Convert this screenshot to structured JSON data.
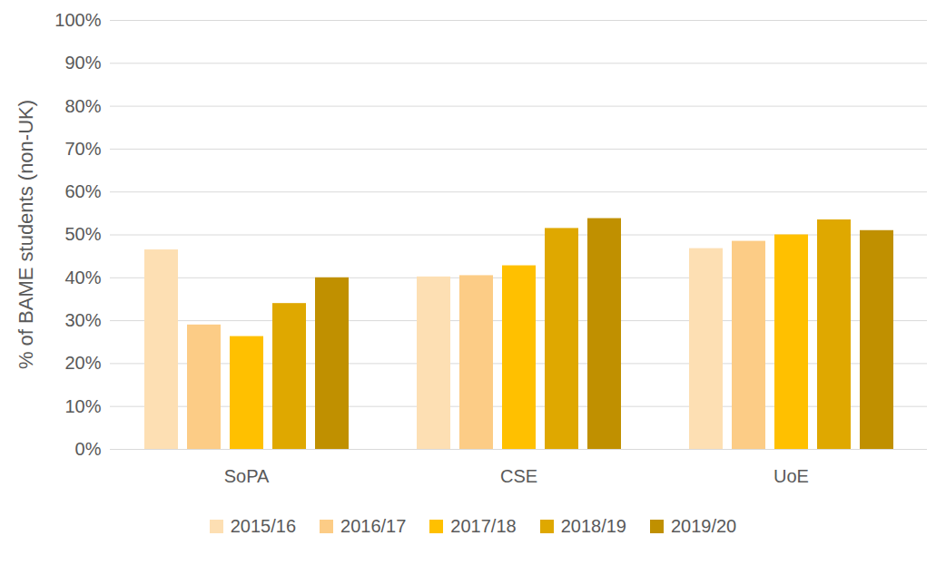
{
  "chart_data": {
    "type": "bar",
    "y_label": "% of BAME students (non-UK)",
    "categories": [
      "SoPA",
      "CSE",
      "UoE"
    ],
    "series": [
      {
        "name": "2015/16",
        "color": "#FDDFB3",
        "values": [
          46.5,
          40.2,
          46.8
        ]
      },
      {
        "name": "2016/17",
        "color": "#FCCC86",
        "values": [
          29,
          40.5,
          48.5
        ]
      },
      {
        "name": "2017/18",
        "color": "#FFC000",
        "values": [
          26.3,
          42.8,
          50
        ]
      },
      {
        "name": "2018/19",
        "color": "#DFA800",
        "values": [
          34,
          51.5,
          53.5
        ]
      },
      {
        "name": "2019/20",
        "color": "#C09000",
        "values": [
          40,
          53.8,
          51
        ]
      }
    ],
    "ylim": [
      0,
      100
    ],
    "yticks": [
      {
        "value": 0,
        "label": "0%"
      },
      {
        "value": 10,
        "label": "10%"
      },
      {
        "value": 20,
        "label": "20%"
      },
      {
        "value": 30,
        "label": "30%"
      },
      {
        "value": 40,
        "label": "40%"
      },
      {
        "value": 50,
        "label": "50%"
      },
      {
        "value": 60,
        "label": "60%"
      },
      {
        "value": 70,
        "label": "70%"
      },
      {
        "value": 80,
        "label": "80%"
      },
      {
        "value": 90,
        "label": "90%"
      },
      {
        "value": 100,
        "label": "100%"
      }
    ],
    "grid": true,
    "legend": "bottom"
  }
}
